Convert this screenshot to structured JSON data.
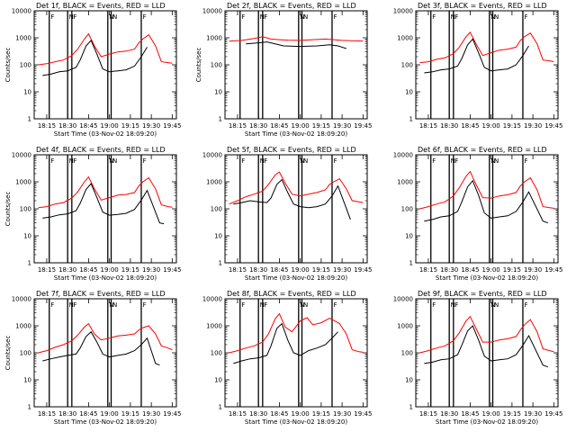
{
  "chart_data": [
    {
      "type": "line",
      "title": "Det 1f, BLACK = Events, RED = LLD",
      "xlabel": "Start Time (03-Nov-02 18:09:20)",
      "ylabel": "Counts/sec",
      "x_tick_labels": [
        "18:15",
        "18:30",
        "18:45",
        "19:00",
        "19:15",
        "19:30",
        "19:45"
      ],
      "y_tick_labels": [
        "1",
        "10",
        "100",
        "1000",
        "10000"
      ],
      "ylim": [
        1,
        10000
      ],
      "legend_marks": [
        "F",
        "N",
        "F",
        "N",
        "N",
        "F"
      ],
      "series": [
        {
          "color": "#ff0000",
          "x": [
            18.15,
            18.25,
            18.35,
            18.45,
            18.55,
            18.62,
            18.7,
            18.75,
            18.82,
            18.9,
            19.0,
            19.1,
            19.2,
            19.3,
            19.35,
            19.4,
            19.47,
            19.55,
            19.62,
            19.7,
            19.75
          ],
          "y": [
            100,
            110,
            130,
            150,
            220,
            380,
            900,
            1400,
            500,
            200,
            250,
            300,
            320,
            380,
            650,
            900,
            1300,
            500,
            130,
            120,
            115
          ]
        },
        {
          "color": "#000000",
          "x": [
            18.2,
            18.3,
            18.4,
            18.5,
            18.6,
            18.65,
            18.72,
            18.78,
            18.85,
            18.92,
            19.0,
            19.1,
            19.2,
            19.3,
            19.38,
            19.45
          ],
          "y": [
            40,
            45,
            55,
            60,
            80,
            150,
            500,
            800,
            250,
            70,
            55,
            60,
            65,
            90,
            200,
            450
          ]
        }
      ]
    },
    {
      "type": "line",
      "title": "Det 2f, BLACK = Events, RED = LLD",
      "xlabel": "Start Time (03-Nov-02 18:09:20)",
      "ylabel": "Counts/sec",
      "x_tick_labels": [
        "18:15",
        "18:30",
        "18:45",
        "19:00",
        "19:15",
        "19:30",
        "19:45"
      ],
      "y_tick_labels": [
        "1",
        "10",
        "100",
        "1000",
        "10000"
      ],
      "ylim": [
        1,
        10000
      ],
      "legend_marks": [
        "F",
        "N",
        "F",
        "N",
        "N",
        "F"
      ],
      "series": [
        {
          "color": "#ff0000",
          "x": [
            18.15,
            18.3,
            18.45,
            18.55,
            18.65,
            18.75,
            18.85,
            19.0,
            19.15,
            19.3,
            19.4,
            19.5,
            19.6,
            19.75
          ],
          "y": [
            750,
            800,
            950,
            1100,
            900,
            850,
            820,
            800,
            850,
            900,
            850,
            800,
            780,
            760
          ]
        },
        {
          "color": "#000000",
          "x": [
            18.35,
            18.5,
            18.6,
            18.7,
            18.8,
            19.0,
            19.2,
            19.35,
            19.45,
            19.55
          ],
          "y": [
            600,
            650,
            700,
            600,
            500,
            480,
            500,
            550,
            500,
            400
          ]
        }
      ]
    },
    {
      "type": "line",
      "title": "Det 3f, BLACK = Events, RED = LLD",
      "xlabel": "",
      "ylabel": "",
      "x_tick_labels": [
        "18:15",
        "18:30",
        "18:45",
        "19:00",
        "19:15",
        "19:30",
        "19:45"
      ],
      "y_tick_labels": [
        "1",
        "10",
        "100",
        "1000",
        "10000"
      ],
      "ylim": [
        1,
        10000
      ],
      "legend_marks": [
        "F",
        "N",
        "F",
        "N",
        "N",
        "F"
      ],
      "series": [
        {
          "color": "#ff0000",
          "x": [
            18.15,
            18.25,
            18.35,
            18.45,
            18.55,
            18.62,
            18.7,
            18.75,
            18.82,
            18.9,
            19.0,
            19.1,
            19.2,
            19.3,
            19.35,
            19.4,
            19.47,
            19.55,
            19.62,
            19.7,
            19.75
          ],
          "y": [
            120,
            130,
            160,
            180,
            260,
            450,
            1100,
            1600,
            600,
            220,
            280,
            350,
            380,
            450,
            800,
            1100,
            1500,
            600,
            150,
            140,
            130
          ]
        },
        {
          "color": "#000000",
          "x": [
            18.2,
            18.3,
            18.4,
            18.5,
            18.6,
            18.65,
            18.72,
            18.78,
            18.85,
            18.92,
            19.0,
            19.1,
            19.2,
            19.3,
            19.38,
            19.45
          ],
          "y": [
            50,
            55,
            65,
            70,
            90,
            170,
            550,
            900,
            280,
            80,
            60,
            65,
            70,
            100,
            220,
            500
          ]
        }
      ]
    },
    {
      "type": "line",
      "title": "Det 4f, BLACK = Events, RED = LLD",
      "xlabel": "Start Time (03-Nov-02 18:09:20)",
      "ylabel": "Counts/sec",
      "x_tick_labels": [
        "18:15",
        "18:30",
        "18:45",
        "19:00",
        "19:15",
        "19:30",
        "19:45"
      ],
      "y_tick_labels": [
        "1",
        "10",
        "100",
        "1000",
        "10000"
      ],
      "ylim": [
        1,
        10000
      ],
      "legend_marks": [
        "F",
        "N",
        "F",
        "N",
        "N",
        "F"
      ],
      "series": [
        {
          "color": "#ff0000",
          "x": [
            18.15,
            18.25,
            18.35,
            18.45,
            18.55,
            18.62,
            18.7,
            18.75,
            18.82,
            18.9,
            19.0,
            19.1,
            19.2,
            19.3,
            19.35,
            19.4,
            19.47,
            19.55,
            19.62,
            19.7,
            19.75
          ],
          "y": [
            110,
            120,
            150,
            170,
            250,
            420,
            1000,
            1500,
            550,
            210,
            260,
            320,
            340,
            400,
            700,
            1000,
            1400,
            550,
            140,
            120,
            115
          ]
        },
        {
          "color": "#000000",
          "x": [
            18.2,
            18.3,
            18.4,
            18.5,
            18.6,
            18.65,
            18.72,
            18.78,
            18.85,
            18.92,
            19.0,
            19.1,
            19.2,
            19.3,
            19.38,
            19.45,
            19.6,
            19.65
          ],
          "y": [
            45,
            50,
            60,
            65,
            85,
            160,
            520,
            850,
            260,
            75,
            58,
            62,
            68,
            95,
            210,
            480,
            30,
            28
          ]
        }
      ]
    },
    {
      "type": "line",
      "title": "Det 5f, BLACK = Events, RED = LLD",
      "xlabel": "Start Time (03-Nov-02 18:09:20)",
      "ylabel": "",
      "x_tick_labels": [
        "18:15",
        "18:30",
        "18:45",
        "19:00",
        "19:15",
        "19:30",
        "19:45"
      ],
      "y_tick_labels": [
        "1",
        "10",
        "100",
        "1000",
        "10000"
      ],
      "ylim": [
        1,
        10000
      ],
      "legend_marks": [
        "F",
        "N",
        "F",
        "N",
        "N",
        "F"
      ],
      "series": [
        {
          "color": "#ff0000",
          "x": [
            18.15,
            18.25,
            18.35,
            18.45,
            18.55,
            18.62,
            18.7,
            18.75,
            18.82,
            18.9,
            19.0,
            19.1,
            19.2,
            19.3,
            19.35,
            19.4,
            19.47,
            19.55,
            19.62,
            19.7,
            19.75
          ],
          "y": [
            150,
            200,
            280,
            350,
            450,
            800,
            1800,
            2300,
            900,
            350,
            300,
            350,
            400,
            500,
            800,
            1000,
            1300,
            550,
            200,
            180,
            170
          ]
        },
        {
          "color": "#000000",
          "x": [
            18.2,
            18.3,
            18.4,
            18.5,
            18.6,
            18.65,
            18.72,
            18.78,
            18.85,
            18.92,
            19.0,
            19.1,
            19.2,
            19.3,
            19.38,
            19.45,
            19.6
          ],
          "y": [
            150,
            170,
            200,
            180,
            170,
            250,
            800,
            1200,
            400,
            150,
            120,
            110,
            120,
            150,
            300,
            700,
            40
          ]
        }
      ]
    },
    {
      "type": "line",
      "title": "Det 6f, BLACK = Events, RED = LLD",
      "xlabel": "Start Time (03-Nov-02 18:09:20)",
      "ylabel": "",
      "x_tick_labels": [
        "18:15",
        "18:30",
        "18:45",
        "19:00",
        "19:15",
        "19:30",
        "19:45"
      ],
      "y_tick_labels": [
        "1",
        "10",
        "100",
        "1000",
        "10000"
      ],
      "ylim": [
        1,
        10000
      ],
      "legend_marks": [
        "F",
        "N",
        "F",
        "N",
        "N",
        "F"
      ],
      "series": [
        {
          "color": "#ff0000",
          "x": [
            18.15,
            18.25,
            18.35,
            18.45,
            18.55,
            18.62,
            18.7,
            18.75,
            18.82,
            18.9,
            19.0,
            19.1,
            19.2,
            19.3,
            19.35,
            19.4,
            19.47,
            19.55,
            19.62,
            19.7,
            19.75
          ],
          "y": [
            100,
            120,
            150,
            180,
            300,
            600,
            1600,
            2400,
            800,
            260,
            250,
            300,
            330,
            400,
            700,
            1000,
            1400,
            500,
            120,
            110,
            105
          ]
        },
        {
          "color": "#000000",
          "x": [
            18.2,
            18.3,
            18.4,
            18.5,
            18.6,
            18.65,
            18.72,
            18.78,
            18.85,
            18.92,
            19.0,
            19.1,
            19.2,
            19.3,
            19.38,
            19.45,
            19.62,
            19.68
          ],
          "y": [
            35,
            40,
            50,
            55,
            80,
            180,
            650,
            1100,
            320,
            70,
            45,
            50,
            55,
            80,
            180,
            420,
            35,
            30
          ]
        }
      ]
    },
    {
      "type": "line",
      "title": "Det 7f, BLACK = Events, RED = LLD",
      "xlabel": "Start Time (03-Nov-02 18:09:20)",
      "ylabel": "Counts/sec",
      "x_tick_labels": [
        "18:15",
        "18:30",
        "18:45",
        "19:00",
        "19:15",
        "19:30",
        "19:45"
      ],
      "y_tick_labels": [
        "1",
        "10",
        "100",
        "1000",
        "10000"
      ],
      "ylim": [
        1,
        10000
      ],
      "legend_marks": [
        "F",
        "N",
        "F",
        "N",
        "N",
        "F"
      ],
      "series": [
        {
          "color": "#ff0000",
          "x": [
            18.15,
            18.25,
            18.35,
            18.45,
            18.55,
            18.62,
            18.7,
            18.75,
            18.82,
            18.9,
            19.0,
            19.1,
            19.2,
            19.3,
            19.35,
            19.4,
            19.47,
            19.55,
            19.62,
            19.7,
            19.75
          ],
          "y": [
            100,
            120,
            160,
            200,
            280,
            450,
            900,
            1200,
            500,
            300,
            350,
            420,
            450,
            500,
            700,
            850,
            1000,
            500,
            180,
            150,
            130
          ]
        },
        {
          "color": "#000000",
          "x": [
            18.2,
            18.3,
            18.4,
            18.5,
            18.6,
            18.65,
            18.72,
            18.78,
            18.85,
            18.92,
            19.0,
            19.1,
            19.2,
            19.3,
            19.38,
            19.45,
            19.55,
            19.6
          ],
          "y": [
            50,
            60,
            70,
            80,
            90,
            150,
            400,
            600,
            250,
            90,
            70,
            80,
            90,
            120,
            200,
            350,
            40,
            35
          ]
        }
      ]
    },
    {
      "type": "line",
      "title": "Det 8f, BLACK = Events, RED = LLD",
      "xlabel": "Start Time (03-Nov-02 18:09:20)",
      "ylabel": "",
      "x_tick_labels": [
        "18:15",
        "18:30",
        "18:45",
        "19:00",
        "19:15",
        "19:30",
        "19:45"
      ],
      "y_tick_labels": [
        "1",
        "10",
        "100",
        "1000",
        "10000"
      ],
      "ylim": [
        1,
        10000
      ],
      "legend_marks": [
        "F",
        "N",
        "F",
        "N",
        "N",
        "F"
      ],
      "series": [
        {
          "color": "#ff0000",
          "x": [
            18.15,
            18.25,
            18.35,
            18.45,
            18.55,
            18.62,
            18.7,
            18.75,
            18.82,
            18.9,
            19.0,
            19.08,
            19.15,
            19.25,
            19.35,
            19.4,
            19.47,
            19.55,
            19.62,
            19.7,
            19.75
          ],
          "y": [
            100,
            120,
            150,
            180,
            250,
            500,
            1800,
            2800,
            900,
            600,
            1500,
            2000,
            1100,
            1300,
            1900,
            1600,
            1200,
            500,
            130,
            110,
            105
          ]
        },
        {
          "color": "#000000",
          "x": [
            18.2,
            18.3,
            18.4,
            18.5,
            18.6,
            18.65,
            18.72,
            18.78,
            18.85,
            18.92,
            19.0,
            19.1,
            19.2,
            19.3,
            19.38,
            19.45
          ],
          "y": [
            40,
            50,
            60,
            65,
            80,
            180,
            800,
            1200,
            300,
            100,
            80,
            120,
            150,
            200,
            350,
            600
          ]
        }
      ]
    },
    {
      "type": "line",
      "title": "Det 9f, BLACK = Events, RED = LLD",
      "xlabel": "Start Time (03-Nov-02 18:09:20)",
      "ylabel": "",
      "x_tick_labels": [
        "18:15",
        "18:30",
        "18:45",
        "19:00",
        "19:15",
        "19:30",
        "19:45"
      ],
      "y_tick_labels": [
        "1",
        "10",
        "100",
        "1000",
        "10000"
      ],
      "ylim": [
        1,
        10000
      ],
      "legend_marks": [
        "F",
        "N",
        "F",
        "N",
        "N",
        "F"
      ],
      "series": [
        {
          "color": "#ff0000",
          "x": [
            18.15,
            18.25,
            18.35,
            18.45,
            18.55,
            18.62,
            18.7,
            18.75,
            18.82,
            18.9,
            19.0,
            19.1,
            19.2,
            19.3,
            19.35,
            19.4,
            19.47,
            19.55,
            19.62,
            19.7,
            19.75
          ],
          "y": [
            100,
            120,
            150,
            180,
            280,
            550,
            1500,
            2200,
            800,
            250,
            250,
            300,
            330,
            400,
            700,
            1100,
            1700,
            600,
            140,
            120,
            110
          ]
        },
        {
          "color": "#000000",
          "x": [
            18.2,
            18.3,
            18.4,
            18.5,
            18.6,
            18.65,
            18.72,
            18.78,
            18.85,
            18.92,
            19.0,
            19.1,
            19.2,
            19.3,
            19.38,
            19.45,
            19.62,
            19.68
          ],
          "y": [
            40,
            45,
            55,
            60,
            85,
            190,
            650,
            1000,
            300,
            75,
            50,
            55,
            60,
            85,
            190,
            430,
            35,
            30
          ]
        }
      ]
    }
  ]
}
